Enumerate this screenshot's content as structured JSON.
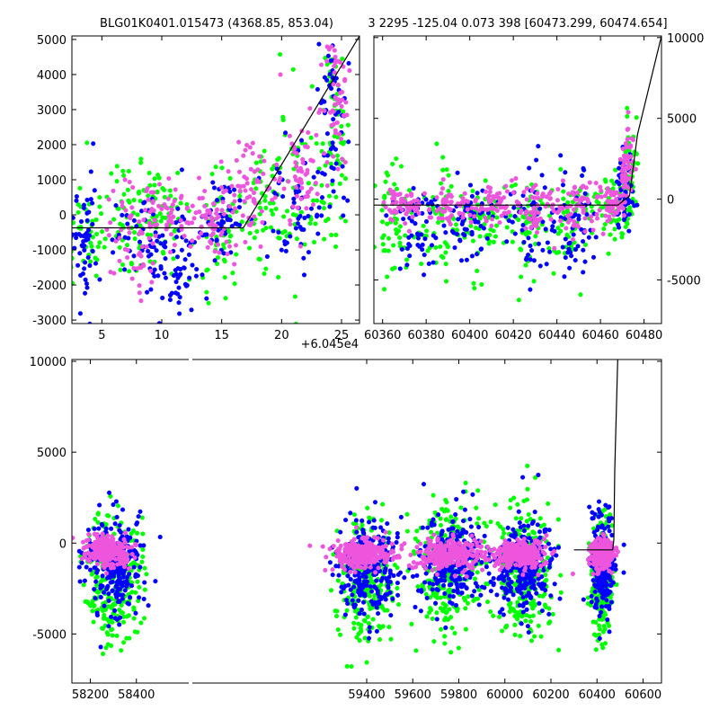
{
  "colors": {
    "green": "#00ff00",
    "blue": "#0000ff",
    "magenta": "#ee55dd",
    "model": "#000000"
  },
  "chart_data": [
    {
      "id": "top-left",
      "type": "scatter",
      "title": "BLG01K0401.015473 (4368.85, 853.04)",
      "offset_label": "+6.045e4",
      "xlim": [
        2.5,
        26.5
      ],
      "ylim": [
        -3100,
        5100
      ],
      "xticks": [
        5,
        10,
        15,
        20,
        25
      ],
      "yticks": [
        -3000,
        -2000,
        -1000,
        0,
        1000,
        2000,
        3000,
        4000,
        5000
      ],
      "y_axis_side": "left",
      "model_line": [
        [
          2.5,
          -370
        ],
        [
          16.8,
          -370
        ],
        [
          26.5,
          5100
        ]
      ],
      "series": [
        {
          "name": "green",
          "color_key": "green",
          "groups": [
            [
              3.5,
              -400,
              1.2,
              900
            ],
            [
              7.5,
              -200,
              1.2,
              900
            ],
            [
              10,
              0,
              1.0,
              800
            ],
            [
              15,
              -300,
              1.0,
              900
            ],
            [
              18.5,
              300,
              1.0,
              900
            ],
            [
              22,
              800,
              1.2,
              1300
            ],
            [
              24.5,
              2500,
              0.6,
              1500
            ]
          ]
        },
        {
          "name": "blue",
          "color_key": "blue",
          "groups": [
            [
              3.5,
              -600,
              0.6,
              1000
            ],
            [
              8.5,
              -600,
              1.2,
              700
            ],
            [
              11.5,
              -1500,
              0.8,
              900
            ],
            [
              15,
              -200,
              0.8,
              500
            ],
            [
              21,
              300,
              1.2,
              900
            ],
            [
              24.2,
              2800,
              0.6,
              1400
            ]
          ]
        },
        {
          "name": "magenta",
          "color_key": "magenta",
          "groups": [
            [
              7.5,
              -600,
              1.0,
              900
            ],
            [
              10.5,
              0,
              1.2,
              500
            ],
            [
              14.5,
              -200,
              1.0,
              500
            ],
            [
              17.5,
              800,
              1.0,
              700
            ],
            [
              21.5,
              1000,
              1.0,
              800
            ],
            [
              24.5,
              3400,
              0.6,
              900
            ]
          ]
        }
      ]
    },
    {
      "id": "top-right",
      "type": "scatter",
      "title": "3 2295 -125.04 0.073 398 [60473.299, 60474.654]",
      "xlim": [
        60356,
        60488
      ],
      "ylim": [
        -7700,
        10100
      ],
      "xticks": [
        60360,
        60380,
        60400,
        60420,
        60440,
        60460,
        60480
      ],
      "yticks": [
        -5000,
        0,
        5000,
        10000
      ],
      "y_axis_side": "right",
      "model_line": [
        [
          60356,
          -370
        ],
        [
          60468,
          -370
        ],
        [
          60473.3,
          200
        ],
        [
          60477,
          4000
        ],
        [
          60488,
          10100
        ]
      ],
      "series": [
        {
          "name": "green",
          "color_key": "green",
          "groups": [
            [
              60365,
              -1500,
              4,
              1600
            ],
            [
              60385,
              -1500,
              5,
              1600
            ],
            [
              60405,
              -1500,
              5,
              1500
            ],
            [
              60425,
              -1500,
              5,
              1600
            ],
            [
              60445,
              -1500,
              5,
              1600
            ],
            [
              60465,
              -500,
              4,
              1200
            ],
            [
              60473,
              1500,
              2,
              1500
            ]
          ]
        },
        {
          "name": "blue",
          "color_key": "blue",
          "groups": [
            [
              60375,
              -1500,
              6,
              1600
            ],
            [
              60400,
              -1500,
              6,
              1500
            ],
            [
              60425,
              -1800,
              6,
              1600
            ],
            [
              60448,
              -1800,
              6,
              1700
            ],
            [
              60471,
              500,
              2,
              1200
            ]
          ]
        },
        {
          "name": "magenta",
          "color_key": "magenta",
          "groups": [
            [
              60370,
              -400,
              5,
              500
            ],
            [
              60390,
              -400,
              5,
              500
            ],
            [
              60410,
              -400,
              5,
              600
            ],
            [
              60430,
              -500,
              6,
              800
            ],
            [
              60450,
              -600,
              6,
              900
            ],
            [
              60466,
              -300,
              3,
              600
            ],
            [
              60472,
              2000,
              1.5,
              1500
            ]
          ]
        }
      ]
    },
    {
      "id": "bottom",
      "type": "scatter",
      "title": "",
      "xlim": [
        58120,
        60680
      ],
      "ylim": [
        -7700,
        10100
      ],
      "xticks": [
        58200,
        58400,
        59400,
        59600,
        59800,
        60000,
        60200,
        60400,
        60600
      ],
      "tick_labels": [
        "58200",
        "58400",
        "59400",
        "59600",
        "59800",
        "60000",
        "60200",
        "60400",
        "60600"
      ],
      "yticks": [
        -5000,
        0,
        5000,
        10000
      ],
      "y_axis_side": "left",
      "model_line": [
        [
          60300,
          -370
        ],
        [
          60468,
          -370
        ],
        [
          60473.3,
          200
        ],
        [
          60477,
          4000
        ],
        [
          60490,
          10100
        ]
      ],
      "series": [
        {
          "name": "green",
          "color_key": "green",
          "groups": [
            [
              58300,
              -1800,
              60,
              1800
            ],
            [
              59400,
              -1800,
              60,
              1700
            ],
            [
              59750,
              -1500,
              70,
              1800
            ],
            [
              60080,
              -1800,
              60,
              1800
            ],
            [
              60420,
              -1800,
              25,
              1600
            ]
          ]
        },
        {
          "name": "blue",
          "color_key": "blue",
          "groups": [
            [
              58300,
              -1200,
              60,
              1300
            ],
            [
              59400,
              -1500,
              60,
              1300
            ],
            [
              59760,
              -1000,
              70,
              1300
            ],
            [
              60080,
              -1400,
              60,
              1300
            ],
            [
              60420,
              -1200,
              25,
              1200
            ]
          ]
        },
        {
          "name": "magenta",
          "color_key": "magenta",
          "groups": [
            [
              58270,
              -500,
              50,
              400
            ],
            [
              59380,
              -600,
              60,
              400
            ],
            [
              59760,
              -600,
              70,
              450
            ],
            [
              60060,
              -600,
              60,
              400
            ],
            [
              60420,
              -600,
              25,
              400
            ]
          ]
        }
      ]
    }
  ]
}
